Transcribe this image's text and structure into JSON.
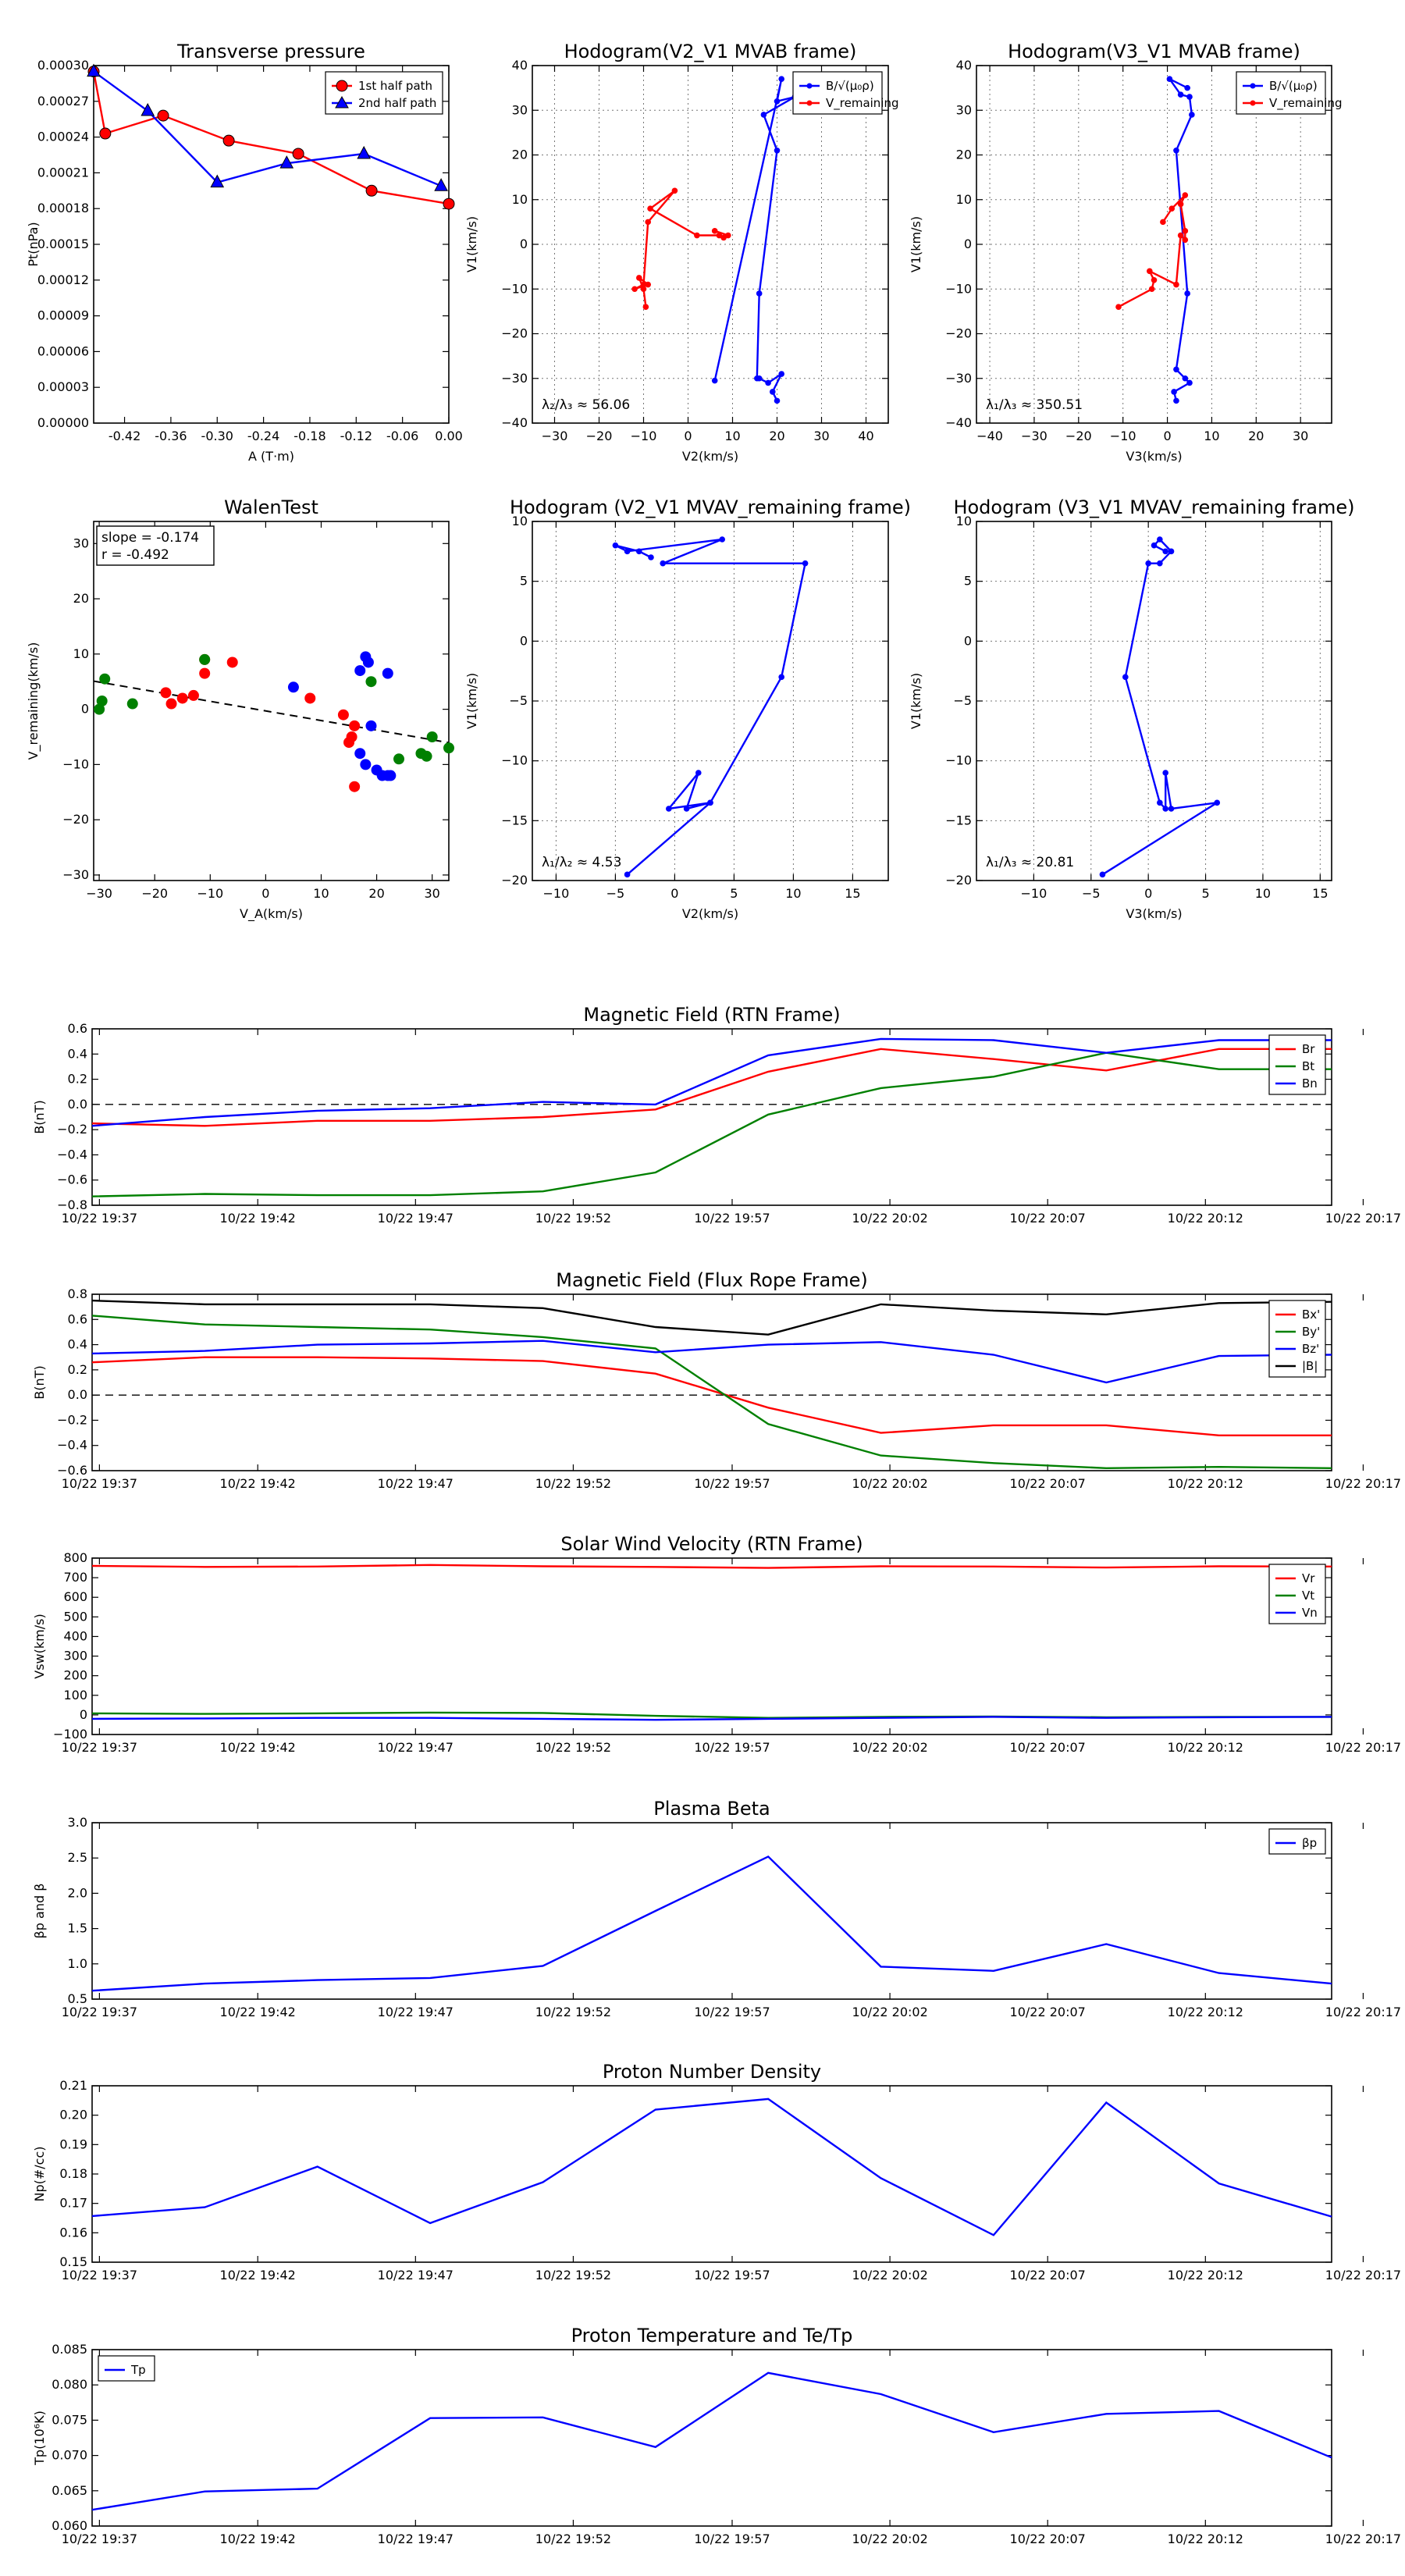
{
  "time_ticks": [
    "10/22 19:37",
    "10/22 19:42",
    "10/22 19:47",
    "10/22 19:52",
    "10/22 19:57",
    "10/22 20:02",
    "10/22 20:07",
    "10/22 20:12",
    "10/22 20:17"
  ],
  "colors": {
    "red": "#ff0000",
    "green": "#008000",
    "blue": "#0000ff",
    "black": "#000000",
    "grid": "#777777"
  },
  "chart_data": [
    {
      "id": "tp",
      "type": "scatter",
      "title": "Transverse pressure",
      "xlabel": "A (T·m)",
      "ylabel": "Pt(nPa)",
      "xlim": [
        -0.46,
        0.0
      ],
      "ylim": [
        0.0,
        0.0003
      ],
      "xticks": [
        -0.42,
        -0.36,
        -0.3,
        -0.24,
        -0.18,
        -0.12,
        -0.06,
        0.0
      ],
      "xtick_labels": [
        "-0.42",
        "-0.36",
        "-0.30",
        "-0.24",
        "-0.18",
        "-0.12",
        "-0.06",
        "0.00"
      ],
      "yticks": [
        0,
        3e-05,
        6e-05,
        9e-05,
        0.00012,
        0.00015,
        0.00018,
        0.00021,
        0.00024,
        0.00027,
        0.0003
      ],
      "ytick_labels": [
        "0.00000",
        "0.00003",
        "0.00006",
        "0.00009",
        "0.00012",
        "0.00015",
        "0.00018",
        "0.00021",
        "0.00024",
        "0.00027",
        "0.00030"
      ],
      "grid": false,
      "legend": "top-right",
      "series": [
        {
          "name": "1st half path",
          "color": "#ff0000",
          "marker": "circle",
          "x": [
            -0.46,
            -0.445,
            -0.37,
            -0.285,
            -0.195,
            -0.1,
            0.0
          ],
          "y": [
            0.000295,
            0.000243,
            0.000258,
            0.000237,
            0.000226,
            0.000195,
            0.000184
          ]
        },
        {
          "name": "2nd half path",
          "color": "#0000ff",
          "marker": "triangle",
          "x": [
            -0.46,
            -0.39,
            -0.3,
            -0.21,
            -0.11,
            -0.01
          ],
          "y": [
            0.000295,
            0.000262,
            0.000202,
            0.000218,
            0.000226,
            0.000199
          ]
        }
      ]
    },
    {
      "id": "h1",
      "type": "line",
      "title": "Hodogram(V2_V1 MVAB frame)",
      "xlabel": "V2(km/s)",
      "ylabel": "V1(km/s)",
      "xlim": [
        -35,
        45
      ],
      "ylim": [
        -40,
        40
      ],
      "xticks": [
        -30,
        -20,
        -10,
        0,
        10,
        20,
        30,
        40
      ],
      "yticks": [
        -40,
        -30,
        -20,
        -10,
        0,
        10,
        20,
        30,
        40
      ],
      "grid": true,
      "legend": "top-right",
      "annotation": "λ₂/λ₃ ≈ 56.06",
      "series": [
        {
          "name": "B/√(μ₀ρ)",
          "color": "#0000ff",
          "marker": "dot",
          "x": [
            20,
            19,
            21,
            18,
            16,
            15.5,
            16,
            20,
            17,
            24,
            20,
            21,
            6
          ],
          "y": [
            -35,
            -33,
            -29,
            -31,
            -30,
            -30,
            -11,
            21,
            29,
            33,
            32,
            37,
            -30.5
          ]
        },
        {
          "name": "V_remaining",
          "color": "#ff0000",
          "marker": "dot",
          "x": [
            -9.5,
            -10,
            -11,
            -9,
            -12,
            -10,
            -9,
            -3,
            -8.5,
            2,
            7,
            8,
            9,
            6
          ],
          "y": [
            -14,
            -10,
            -7.5,
            -9,
            -10,
            -9,
            5,
            12,
            8,
            2,
            2,
            1.5,
            2,
            3
          ]
        }
      ]
    },
    {
      "id": "h2",
      "type": "line",
      "title": "Hodogram(V3_V1 MVAB frame)",
      "xlabel": "V3(km/s)",
      "ylabel": "V1(km/s)",
      "xlim": [
        -43,
        37
      ],
      "ylim": [
        -40,
        40
      ],
      "xticks": [
        -40,
        -30,
        -20,
        -10,
        0,
        10,
        20,
        30
      ],
      "yticks": [
        -40,
        -30,
        -20,
        -10,
        0,
        10,
        20,
        30,
        40
      ],
      "grid": true,
      "legend": "top-right",
      "annotation": "λ₁/λ₃ ≈ 350.51",
      "series": [
        {
          "name": "B/√(μ₀ρ)",
          "color": "#0000ff",
          "marker": "dot",
          "x": [
            2,
            1.5,
            5,
            4,
            2,
            4.5,
            2,
            5.5,
            5,
            3,
            0.5,
            4.5
          ],
          "y": [
            -35,
            -33,
            -31,
            -30,
            -28,
            -11,
            21,
            29,
            33,
            33.5,
            37,
            35
          ]
        },
        {
          "name": "V_remaining",
          "color": "#ff0000",
          "marker": "dot",
          "x": [
            -11,
            -3.5,
            -3,
            -4,
            2,
            3,
            4,
            4,
            3,
            4,
            1,
            -1
          ],
          "y": [
            -14,
            -10,
            -8,
            -6,
            -9,
            2,
            1,
            3,
            9,
            11,
            8,
            5
          ]
        }
      ]
    },
    {
      "id": "wt",
      "type": "scatter",
      "title": "WalenTest",
      "xlabel": "V_A(km/s)",
      "ylabel": "V_remaining(km/s)",
      "xlim": [
        -31,
        33
      ],
      "ylim": [
        -31,
        34
      ],
      "xticks": [
        -30,
        -20,
        -10,
        0,
        10,
        20,
        30
      ],
      "yticks": [
        -30,
        -20,
        -10,
        0,
        10,
        20,
        30
      ],
      "grid": false,
      "slope_text": "slope = -0.174",
      "r_text": "r = -0.492",
      "fit_line": {
        "slope": -0.174,
        "intercept": -0.3
      },
      "series": [
        {
          "name": "red",
          "color": "#ff0000",
          "x": [
            -18,
            -17,
            -15,
            -13,
            -11,
            -6,
            14,
            15,
            15.5,
            16,
            16,
            8,
            -11
          ],
          "y": [
            3,
            1,
            2,
            2.5,
            6.5,
            8.5,
            -1,
            -6,
            -5,
            -3,
            -14,
            2,
            9
          ]
        },
        {
          "name": "green",
          "color": "#008000",
          "x": [
            -30,
            -29.5,
            -29,
            -24,
            -11,
            19,
            24,
            28,
            29,
            30,
            33
          ],
          "y": [
            0,
            1.5,
            5.5,
            1,
            9,
            5,
            -9,
            -8,
            -8.5,
            -5,
            -7
          ]
        },
        {
          "name": "blue",
          "color": "#0000ff",
          "x": [
            5,
            17,
            18,
            18.5,
            17,
            18,
            20,
            21,
            22,
            22.5,
            22,
            19
          ],
          "y": [
            4,
            7,
            9.5,
            8.5,
            -8,
            -10,
            -11,
            -12,
            -12,
            -12,
            6.5,
            -3
          ]
        }
      ]
    },
    {
      "id": "h3",
      "type": "line",
      "title": "Hodogram (V2_V1 MVAV_remaining frame)",
      "xlabel": "V2(km/s)",
      "ylabel": "V1(km/s)",
      "xlim": [
        -12,
        18
      ],
      "ylim": [
        -20,
        10
      ],
      "xticks": [
        -10,
        -5,
        0,
        5,
        10,
        15
      ],
      "yticks": [
        -20,
        -15,
        -10,
        -5,
        0,
        5,
        10
      ],
      "grid": true,
      "annotation": "λ₁/λ₂ ≈ 4.53",
      "series": [
        {
          "name": "B",
          "color": "#0000ff",
          "marker": "dot",
          "x": [
            -4,
            3,
            1,
            2,
            -0.5,
            3,
            9,
            11,
            -1,
            4,
            -4,
            -5,
            -3,
            -2
          ],
          "y": [
            -19.5,
            -13.5,
            -14,
            -11,
            -14,
            -13.5,
            -3,
            6.5,
            6.5,
            8.5,
            7.5,
            8,
            7.5,
            7
          ]
        }
      ]
    },
    {
      "id": "h4",
      "type": "line",
      "title": "Hodogram (V3_V1 MVAV_remaining frame)",
      "xlabel": "V3(km/s)",
      "ylabel": "V1(km/s)",
      "xlim": [
        -15,
        16
      ],
      "ylim": [
        -20,
        10
      ],
      "xticks": [
        -10,
        -5,
        0,
        5,
        10,
        15
      ],
      "yticks": [
        -20,
        -15,
        -10,
        -5,
        0,
        5,
        10
      ],
      "grid": true,
      "annotation": "λ₁/λ₃ ≈ 20.81",
      "series": [
        {
          "name": "B",
          "color": "#0000ff",
          "marker": "dot",
          "x": [
            -4,
            6,
            2,
            1.5,
            1.5,
            1,
            -2,
            0,
            1,
            2,
            1,
            0.5,
            1.5
          ],
          "y": [
            -19.5,
            -13.5,
            -14,
            -11,
            -14,
            -13.5,
            -3,
            6.5,
            6.5,
            7.5,
            8.5,
            8,
            7.5
          ]
        }
      ]
    },
    {
      "id": "mfrtn",
      "type": "line",
      "title": "Magnetic Field (RTN Frame)",
      "ylabel": "B(nT)",
      "ylim": [
        -0.8,
        0.6
      ],
      "yticks": [
        -0.8,
        -0.6,
        -0.4,
        -0.2,
        0.0,
        0.2,
        0.4,
        0.6
      ],
      "ytick_labels": [
        "−0.8",
        "−0.6",
        "−0.4",
        "−0.2",
        "0.0",
        "0.2",
        "0.4",
        "0.6"
      ],
      "grid": false,
      "zero_line": true,
      "legend": "top-right",
      "x": [
        0,
        1,
        2,
        3,
        4,
        5,
        6,
        7,
        8,
        9,
        10,
        11
      ],
      "series": [
        {
          "name": "Br",
          "color": "#ff0000",
          "values": [
            -0.15,
            -0.17,
            -0.13,
            -0.13,
            -0.1,
            -0.04,
            0.26,
            0.44,
            0.36,
            0.27,
            0.44,
            0.44
          ]
        },
        {
          "name": "Bt",
          "color": "#008000",
          "values": [
            -0.73,
            -0.71,
            -0.72,
            -0.72,
            -0.69,
            -0.54,
            -0.08,
            0.13,
            0.22,
            0.41,
            0.28,
            0.28
          ]
        },
        {
          "name": "Bn",
          "color": "#0000ff",
          "values": [
            -0.17,
            -0.1,
            -0.05,
            -0.03,
            0.02,
            0.0,
            0.39,
            0.52,
            0.51,
            0.41,
            0.51,
            0.51
          ]
        }
      ]
    },
    {
      "id": "mffr",
      "type": "line",
      "title": "Magnetic Field (Flux Rope Frame)",
      "ylabel": "B(nT)",
      "ylim": [
        -0.6,
        0.8
      ],
      "yticks": [
        -0.6,
        -0.4,
        -0.2,
        0.0,
        0.2,
        0.4,
        0.6,
        0.8
      ],
      "ytick_labels": [
        "−0.6",
        "−0.4",
        "−0.2",
        "0.0",
        "0.2",
        "0.4",
        "0.6",
        "0.8"
      ],
      "grid": false,
      "zero_line": true,
      "legend": "top-right",
      "x": [
        0,
        1,
        2,
        3,
        4,
        5,
        6,
        7,
        8,
        9,
        10,
        11
      ],
      "series": [
        {
          "name": "Bx'",
          "color": "#ff0000",
          "values": [
            0.26,
            0.3,
            0.3,
            0.29,
            0.27,
            0.17,
            -0.1,
            -0.3,
            -0.24,
            -0.24,
            -0.32,
            -0.32
          ]
        },
        {
          "name": "By'",
          "color": "#008000",
          "values": [
            0.63,
            0.56,
            0.54,
            0.52,
            0.46,
            0.37,
            -0.23,
            -0.48,
            -0.54,
            -0.58,
            -0.57,
            -0.58
          ]
        },
        {
          "name": "Bz'",
          "color": "#0000ff",
          "values": [
            0.33,
            0.35,
            0.4,
            0.41,
            0.43,
            0.34,
            0.4,
            0.42,
            0.32,
            0.1,
            0.31,
            0.32
          ]
        },
        {
          "name": "|B|",
          "color": "#000000",
          "values": [
            0.75,
            0.72,
            0.72,
            0.72,
            0.69,
            0.54,
            0.48,
            0.72,
            0.67,
            0.64,
            0.73,
            0.74
          ]
        }
      ]
    },
    {
      "id": "sw",
      "type": "line",
      "title": "Solar Wind Velocity (RTN Frame)",
      "ylabel": "Vsw(km/s)",
      "ylim": [
        -100,
        800
      ],
      "yticks": [
        -100,
        0,
        100,
        200,
        300,
        400,
        500,
        600,
        700,
        800
      ],
      "ytick_labels": [
        "−100",
        "0",
        "100",
        "200",
        "300",
        "400",
        "500",
        "600",
        "700",
        "800"
      ],
      "grid": false,
      "legend": "top-right",
      "x": [
        0,
        1,
        2,
        3,
        4,
        5,
        6,
        7,
        8,
        9,
        10,
        11
      ],
      "series": [
        {
          "name": "Vr",
          "color": "#ff0000",
          "values": [
            760,
            755,
            757,
            765,
            758,
            755,
            750,
            758,
            757,
            752,
            758,
            757
          ]
        },
        {
          "name": "Vt",
          "color": "#008000",
          "values": [
            8,
            5,
            8,
            12,
            10,
            -5,
            -15,
            -10,
            -8,
            -12,
            -10,
            -10
          ]
        },
        {
          "name": "Vn",
          "color": "#0000ff",
          "values": [
            -20,
            -18,
            -15,
            -15,
            -20,
            -25,
            -20,
            -15,
            -10,
            -15,
            -12,
            -10
          ]
        }
      ]
    },
    {
      "id": "pb",
      "type": "line",
      "title": "Plasma Beta",
      "ylabel": "βp and β",
      "ylim": [
        0.5,
        3.0
      ],
      "yticks": [
        0.5,
        1.0,
        1.5,
        2.0,
        2.5,
        3.0
      ],
      "ytick_labels": [
        "0.5",
        "1.0",
        "1.5",
        "2.0",
        "2.5",
        "3.0"
      ],
      "grid": false,
      "legend": "top-right",
      "x": [
        0,
        1,
        2,
        3,
        4,
        5,
        6,
        7,
        8,
        9,
        10,
        11
      ],
      "series": [
        {
          "name": "βp",
          "color": "#0000ff",
          "values": [
            0.62,
            0.72,
            0.77,
            0.8,
            0.97,
            1.75,
            2.52,
            0.96,
            0.9,
            1.28,
            0.87,
            0.72
          ]
        }
      ]
    },
    {
      "id": "pnd",
      "type": "line",
      "title": "Proton Number Density",
      "ylabel": "Np(#/cc)",
      "ylim": [
        0.15,
        0.21
      ],
      "yticks": [
        0.15,
        0.16,
        0.17,
        0.18,
        0.19,
        0.2,
        0.21
      ],
      "ytick_labels": [
        "0.15",
        "0.16",
        "0.17",
        "0.18",
        "0.19",
        "0.20",
        "0.21"
      ],
      "grid": false,
      "x": [
        0,
        1,
        2,
        3,
        4,
        5,
        6,
        7,
        8,
        9,
        10,
        11
      ],
      "series": [
        {
          "name": "Np",
          "color": "#0000ff",
          "values": [
            0.1657,
            0.1687,
            0.1825,
            0.1633,
            0.1772,
            0.2019,
            0.2055,
            0.1786,
            0.1592,
            0.2043,
            0.1768,
            0.1655
          ]
        }
      ]
    },
    {
      "id": "pt",
      "type": "line",
      "title": "Proton Temperature and Te/Tp",
      "ylabel": "Tp(10⁶K)",
      "ylim": [
        0.06,
        0.085
      ],
      "yticks": [
        0.06,
        0.065,
        0.07,
        0.075,
        0.08,
        0.085
      ],
      "ytick_labels": [
        "0.060",
        "0.065",
        "0.070",
        "0.075",
        "0.080",
        "0.085"
      ],
      "grid": false,
      "legend": "top-left",
      "x": [
        0,
        1,
        2,
        3,
        4,
        5,
        6,
        7,
        8,
        9,
        10,
        11
      ],
      "series": [
        {
          "name": "Tp",
          "color": "#0000ff",
          "values": [
            0.0623,
            0.0649,
            0.0653,
            0.0753,
            0.0754,
            0.0712,
            0.0817,
            0.0787,
            0.0733,
            0.0759,
            0.0763,
            0.0697
          ]
        }
      ]
    }
  ]
}
